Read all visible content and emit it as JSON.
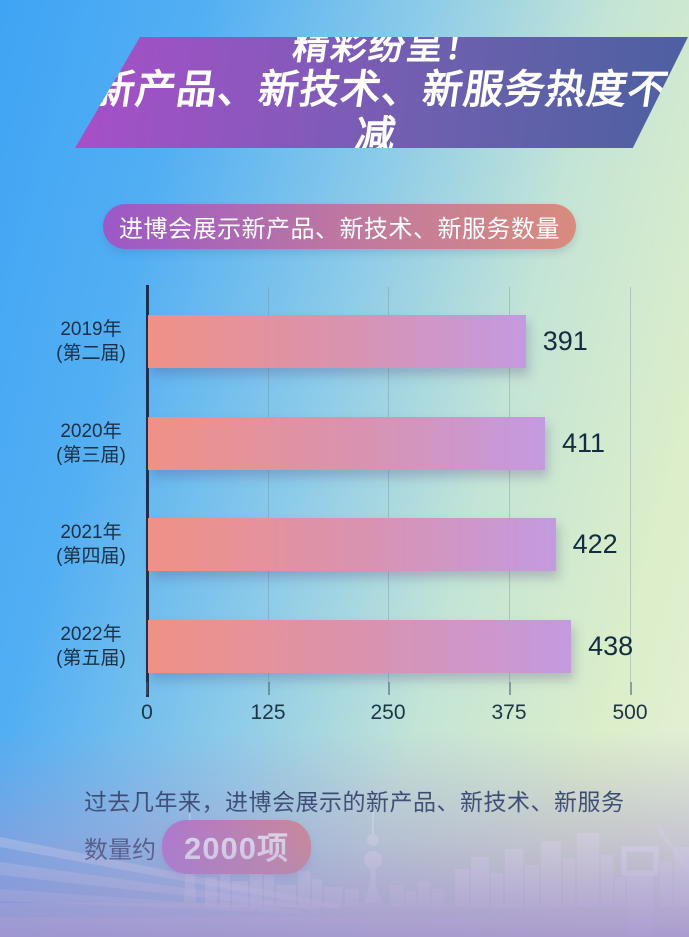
{
  "poster": {
    "banner": {
      "line1": "精彩纷呈！",
      "line2": "新产品、新技术、新服务热度不减"
    },
    "subtitle": "进博会展示新产品、新技术、新服务数量",
    "footer_line1": "过去几年来，进博会展示的新产品、新技术、新服务",
    "footer_line2_prefix": "数量约",
    "footer_highlight": "2000项"
  },
  "chart_data": {
    "type": "bar",
    "orientation": "horizontal",
    "title": "进博会展示新产品、新技术、新服务数量",
    "categories": [
      "2019年(第二届)",
      "2020年(第三届)",
      "2021年(第四届)",
      "2022年(第五届)"
    ],
    "values": [
      391,
      411,
      422,
      438
    ],
    "rows": [
      {
        "year": "2019年",
        "session": "(第二届)",
        "value": 391
      },
      {
        "year": "2020年",
        "session": "(第三届)",
        "value": 411
      },
      {
        "year": "2021年",
        "session": "(第四届)",
        "value": 422
      },
      {
        "year": "2022年",
        "session": "(第五届)",
        "value": 438
      }
    ],
    "x_ticks": [
      "0",
      "125",
      "250",
      "375",
      "500"
    ],
    "xlim": [
      0,
      500
    ],
    "xlabel": "",
    "ylabel": "",
    "grid": "faint-vertical",
    "legend": "none",
    "bar_gradient": [
      "#f09186",
      "#c49ae0"
    ]
  },
  "colors": {
    "banner_gradient_left": "#a84fc8",
    "banner_gradient_right": "#4b60a0",
    "subtitle_gradient_left": "#9b58c8",
    "subtitle_gradient_right": "#d98b7e",
    "highlight_gradient_left": "#b368cd",
    "highlight_gradient_right": "#df8379",
    "text_dark": "#16304a",
    "bg_blue": "#43a6f3",
    "bg_green": "#ddeecb",
    "bg_lavender": "#b1a0d6"
  }
}
